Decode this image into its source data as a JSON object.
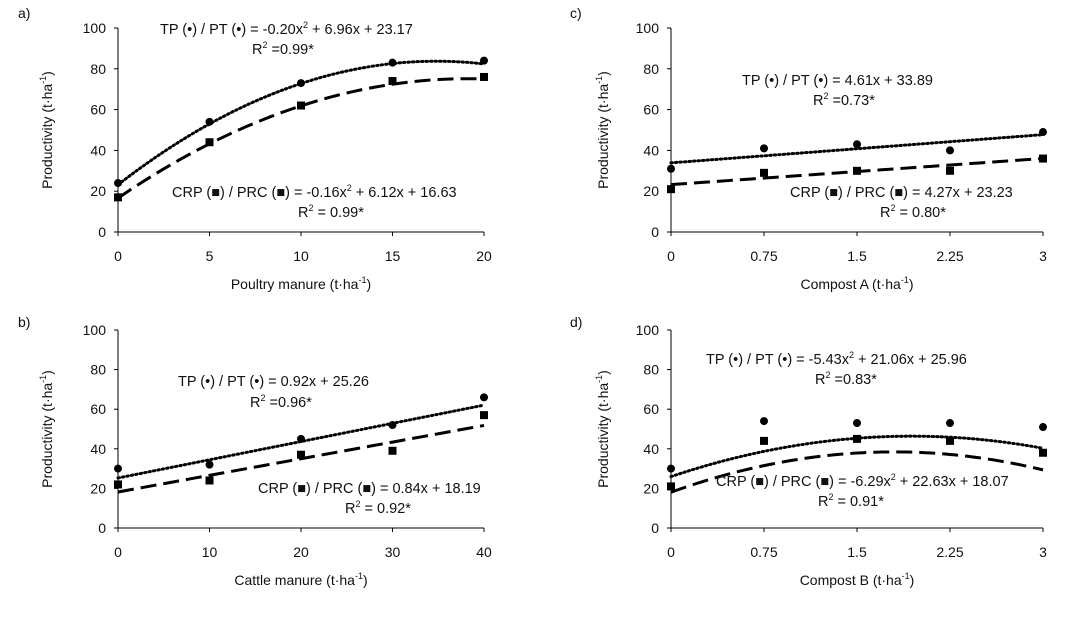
{
  "chart_data": [
    {
      "type": "scatter",
      "panel_label": "a)",
      "xlabel_main": "Poultry manure (t·ha",
      "xlabel_sup": "-1",
      "xlabel_close": ")",
      "ylabel_main": "Productivity (t·ha",
      "ylabel_sup": "-1",
      "ylabel_close": ")",
      "x_ticks": [
        "0",
        "5",
        "10",
        "15",
        "20"
      ],
      "y_ticks": [
        "0",
        "20",
        "40",
        "60",
        "80",
        "100"
      ],
      "xlim": [
        0,
        20
      ],
      "ylim": [
        0,
        100
      ],
      "series": [
        {
          "name": "TP / PT",
          "marker": "circle",
          "line": "dotted",
          "x": [
            0,
            5,
            10,
            15,
            20
          ],
          "y": [
            24,
            54,
            73,
            83,
            84
          ],
          "fit": {
            "kind": "quadratic",
            "a": -0.2,
            "b": 6.96,
            "c": 23.17
          },
          "eq_text": "TP (•) / PT (•)  = -0.20x² + 6.96x + 23.17",
          "r2_main": "R",
          "r2_sup": "2",
          "r2_rest": " =0.99*"
        },
        {
          "name": "CRP / PRC",
          "marker": "square",
          "line": "dashed",
          "x": [
            0,
            5,
            10,
            15,
            20
          ],
          "y": [
            17,
            44,
            62,
            74,
            76
          ],
          "fit": {
            "kind": "quadratic",
            "a": -0.16,
            "b": 6.12,
            "c": 16.63
          },
          "eq_text": "CRP (■) / PRC (■) = -0.16x² + 6.12x + 16.63",
          "r2_main": "R",
          "r2_sup": "2",
          "r2_rest": " = 0.99*"
        }
      ]
    },
    {
      "type": "scatter",
      "panel_label": "b)",
      "xlabel_main": "Cattle manure (t·ha",
      "xlabel_sup": "-1",
      "xlabel_close": ")",
      "ylabel_main": "Productivity (t·ha",
      "ylabel_sup": "-1",
      "ylabel_close": ")",
      "x_ticks": [
        "0",
        "10",
        "20",
        "30",
        "40"
      ],
      "y_ticks": [
        "0",
        "20",
        "40",
        "60",
        "80",
        "100"
      ],
      "xlim": [
        0,
        40
      ],
      "ylim": [
        0,
        100
      ],
      "series": [
        {
          "name": "TP / PT",
          "marker": "circle",
          "line": "dotted",
          "x": [
            0,
            10,
            20,
            30,
            40
          ],
          "y": [
            30,
            32,
            45,
            52,
            66
          ],
          "fit": {
            "kind": "linear",
            "m": 0.92,
            "c": 25.26
          },
          "eq_text": "TP (•) / PT (•)  = 0.92x + 25.26",
          "r2_main": "R",
          "r2_sup": "2",
          "r2_rest": " =0.96*"
        },
        {
          "name": "CRP / PRC",
          "marker": "square",
          "line": "dashed",
          "x": [
            0,
            10,
            20,
            30,
            40
          ],
          "y": [
            22,
            24,
            37,
            39,
            57
          ],
          "fit": {
            "kind": "linear",
            "m": 0.84,
            "c": 18.19
          },
          "eq_text": "CRP (■) / PRC (■) = 0.84x + 18.19",
          "r2_main": "R",
          "r2_sup": "2",
          "r2_rest": " = 0.92*"
        }
      ]
    },
    {
      "type": "scatter",
      "panel_label": "c)",
      "xlabel_main": "Compost A (t·ha",
      "xlabel_sup": "-1",
      "xlabel_close": ")",
      "ylabel_main": "Productivity (t·ha",
      "ylabel_sup": "-1",
      "ylabel_close": ")",
      "x_ticks": [
        "0",
        "0.75",
        "1.5",
        "2.25",
        "3"
      ],
      "y_ticks": [
        "0",
        "20",
        "40",
        "60",
        "80",
        "100"
      ],
      "xlim": [
        0,
        3
      ],
      "ylim": [
        0,
        100
      ],
      "series": [
        {
          "name": "TP / PT",
          "marker": "circle",
          "line": "dotted",
          "x": [
            0,
            0.75,
            1.5,
            2.25,
            3
          ],
          "y": [
            31,
            41,
            43,
            40,
            49
          ],
          "fit": {
            "kind": "linear",
            "m": 4.61,
            "c": 33.89
          },
          "eq_text": "TP (•) / PT (•)  = 4.61x + 33.89",
          "r2_main": "R",
          "r2_sup": "2",
          "r2_rest": " =0.73*"
        },
        {
          "name": "CRP / PRC",
          "marker": "square",
          "line": "dashed",
          "x": [
            0,
            0.75,
            1.5,
            2.25,
            3
          ],
          "y": [
            21,
            29,
            30,
            30,
            36
          ],
          "fit": {
            "kind": "linear",
            "m": 4.27,
            "c": 23.23
          },
          "eq_text": "CRP (■) / PRC (■) = 4.27x + 23.23",
          "r2_main": "R",
          "r2_sup": "2",
          "r2_rest": " = 0.80*"
        }
      ]
    },
    {
      "type": "scatter",
      "panel_label": "d)",
      "xlabel_main": "Compost B (t·ha",
      "xlabel_sup": "-1",
      "xlabel_close": ")",
      "ylabel_main": "Productivity (t·ha",
      "ylabel_sup": "-1",
      "ylabel_close": ")",
      "x_ticks": [
        "0",
        "0.75",
        "1.5",
        "2.25",
        "3"
      ],
      "y_ticks": [
        "0",
        "20",
        "40",
        "60",
        "80",
        "100"
      ],
      "xlim": [
        0,
        3
      ],
      "ylim": [
        0,
        100
      ],
      "series": [
        {
          "name": "TP / PT",
          "marker": "circle",
          "line": "dotted",
          "x": [
            0,
            0.75,
            1.5,
            2.25,
            3
          ],
          "y": [
            30,
            54,
            53,
            53,
            51
          ],
          "fit": {
            "kind": "quadratic",
            "a": -5.43,
            "b": 21.06,
            "c": 25.96
          },
          "eq_text": "TP (•) / PT (•)  = -5.43x² + 21.06x + 25.96",
          "r2_main": "R",
          "r2_sup": "2",
          "r2_rest": " =0.83*"
        },
        {
          "name": "CRP / PRC",
          "marker": "square",
          "line": "dashed",
          "x": [
            0,
            0.75,
            1.5,
            2.25,
            3
          ],
          "y": [
            21,
            44,
            45,
            44,
            38
          ],
          "fit": {
            "kind": "quadratic",
            "a": -6.29,
            "b": 22.63,
            "c": 18.07
          },
          "eq_text": "CRP (■) / PRC (■) = -6.29x² + 22.63x + 18.07",
          "r2_main": "R",
          "r2_sup": "2",
          "r2_rest": " = 0.91*"
        }
      ]
    }
  ]
}
